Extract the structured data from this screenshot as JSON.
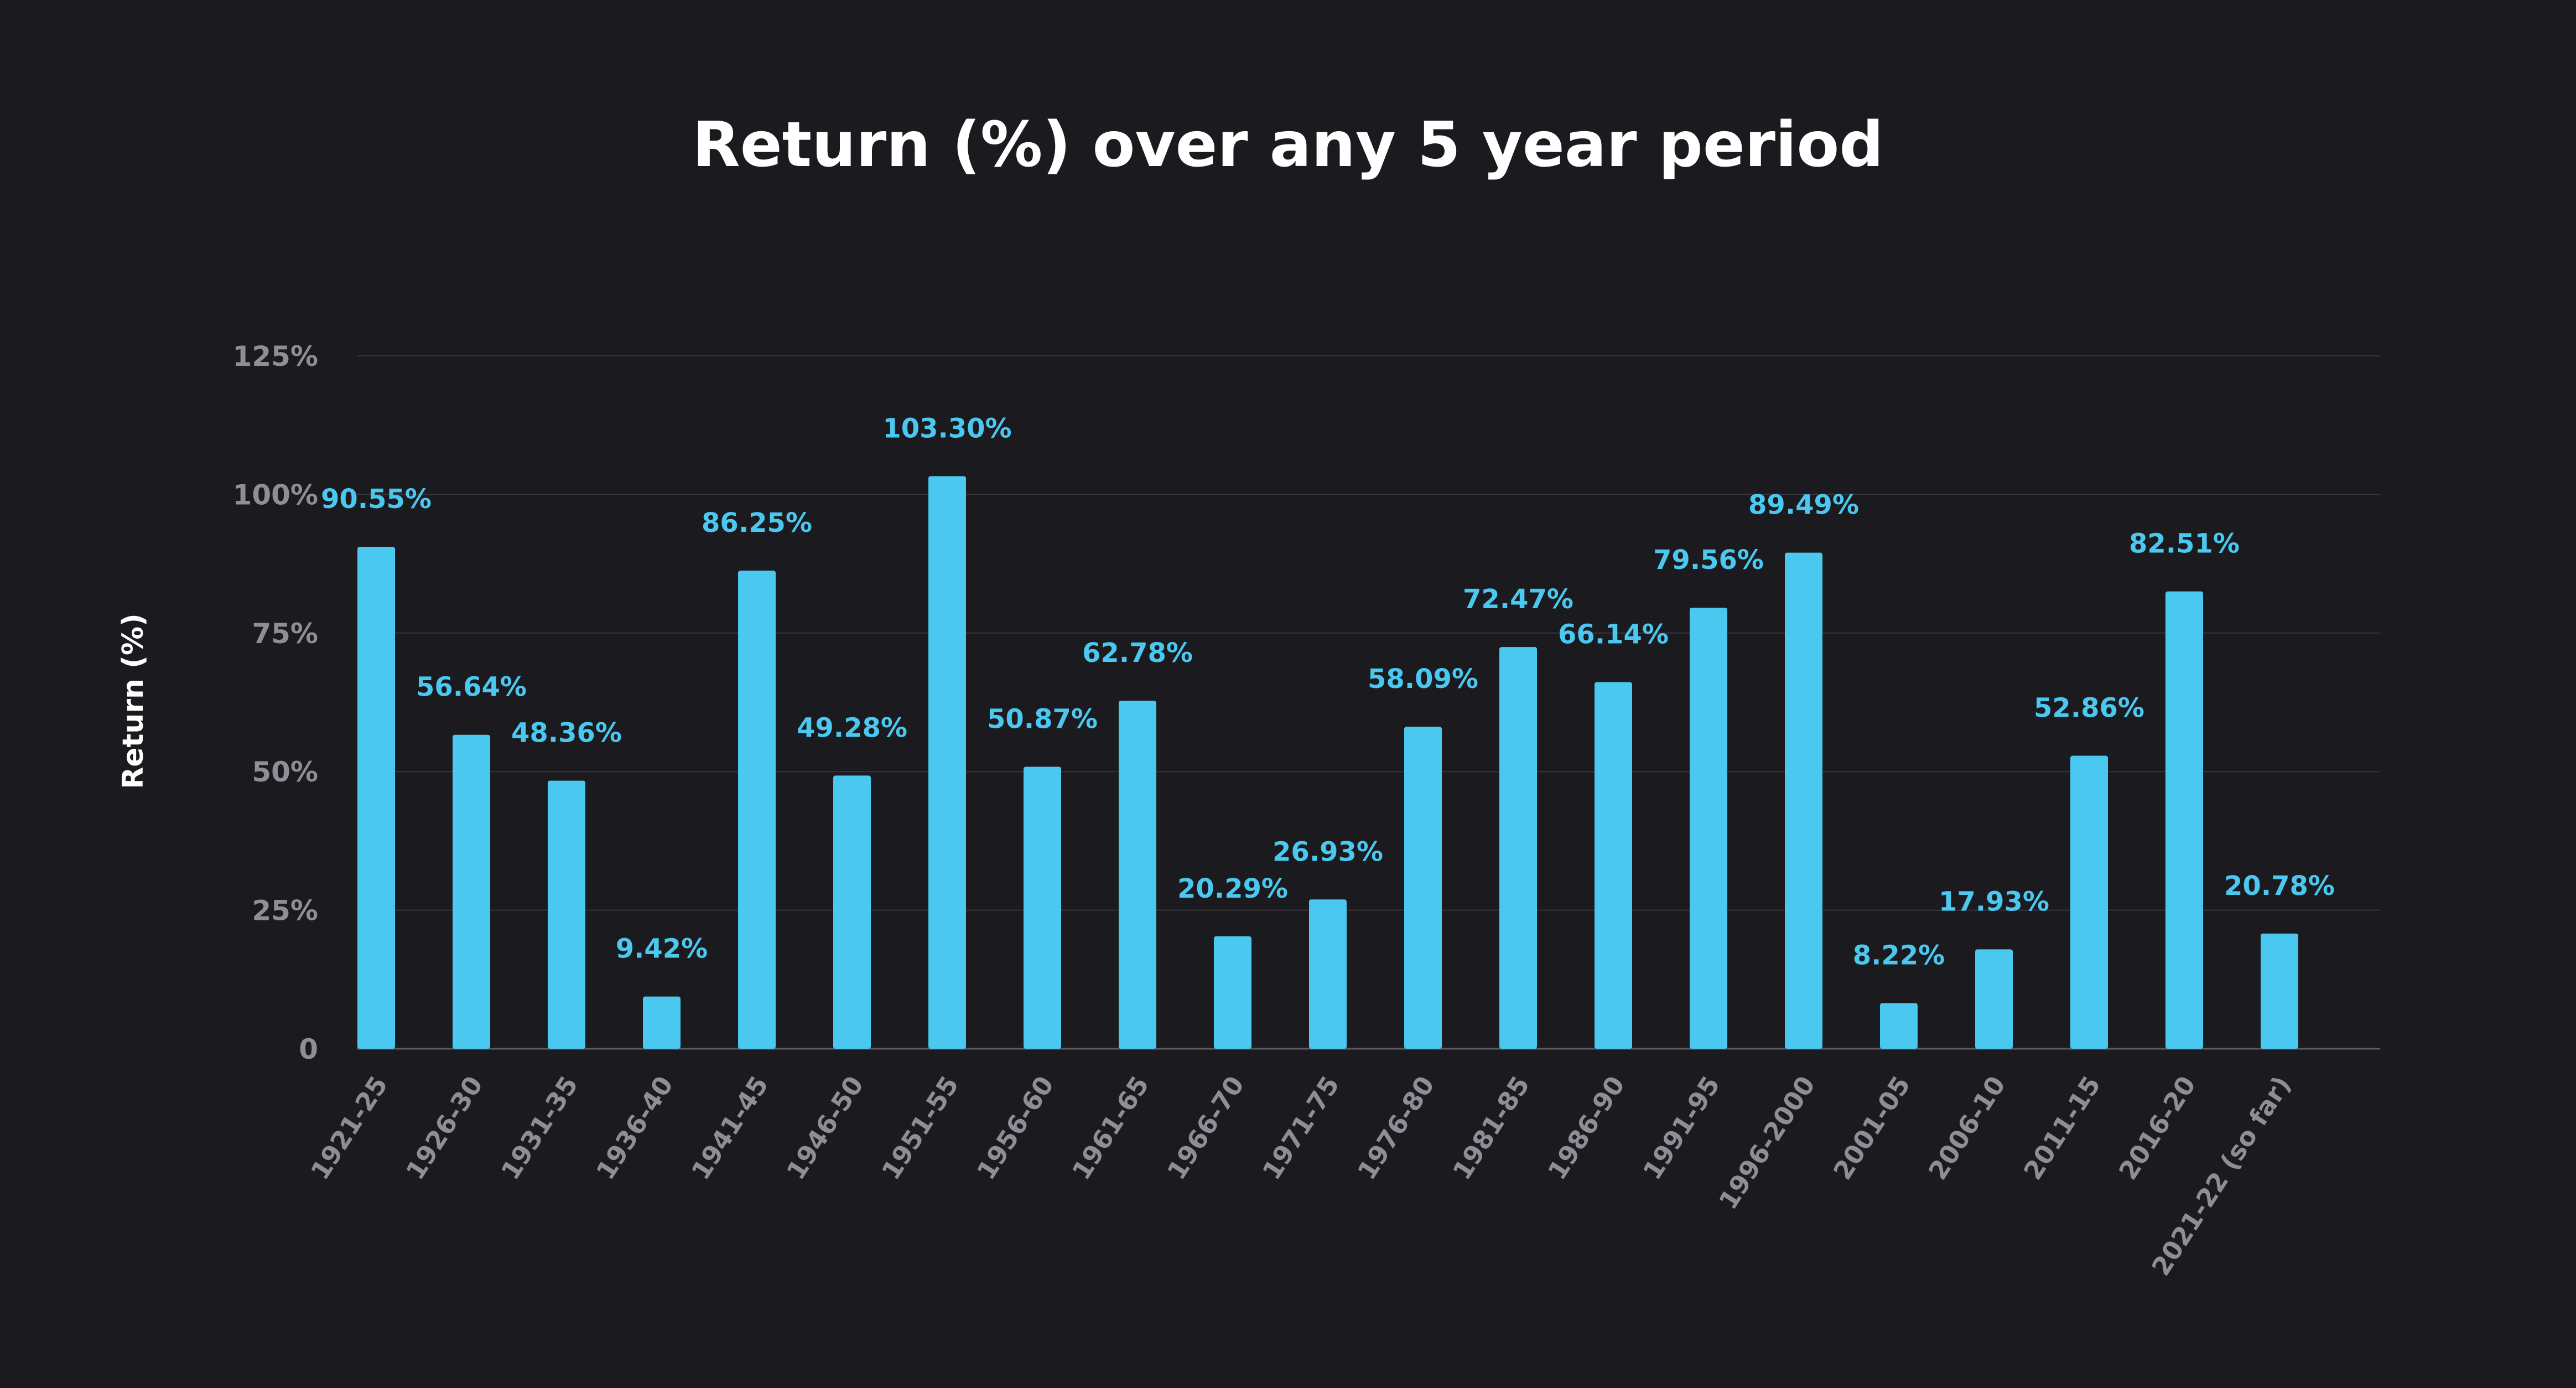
{
  "chart_data": {
    "type": "bar",
    "title": "Return (%) over any 5 year period",
    "ylabel": "Return (%)",
    "xlabel": "",
    "ylim": [
      0,
      125
    ],
    "yticks": [
      0,
      25,
      50,
      75,
      100,
      125
    ],
    "ytick_labels": [
      "0",
      "25%",
      "50%",
      "75%",
      "100%",
      "125%"
    ],
    "grid": true,
    "bar_color": "#4ac8f0",
    "background_color": "#1b1b1f",
    "categories": [
      "1921-25",
      "1926-30",
      "1931-35",
      "1936-40",
      "1941-45",
      "1946-50",
      "1951-55",
      "1956-60",
      "1961-65",
      "1966-70",
      "1971-75",
      "1976-80",
      "1981-85",
      "1986-90",
      "1991-95",
      "1996-2000",
      "2001-05",
      "2006-10",
      "2011-15",
      "2016-20",
      "2021-22  (so far)"
    ],
    "values": [
      90.55,
      56.64,
      48.36,
      9.42,
      86.25,
      49.28,
      103.3,
      50.87,
      62.78,
      20.29,
      26.93,
      58.09,
      72.47,
      66.14,
      79.56,
      89.49,
      8.22,
      17.93,
      52.86,
      82.51,
      20.78
    ],
    "data_labels": [
      "90.55%",
      "56.64%",
      "48.36%",
      "9.42%",
      "86.25%",
      "49.28%",
      "103.30%",
      "50.87%",
      "62.78%",
      "20.29%",
      "26.93%",
      "58.09%",
      "72.47%",
      "66.14%",
      "79.56%",
      "89.49%",
      "8.22%",
      "17.93%",
      "52.86%",
      "82.51%",
      "20.78%"
    ]
  }
}
